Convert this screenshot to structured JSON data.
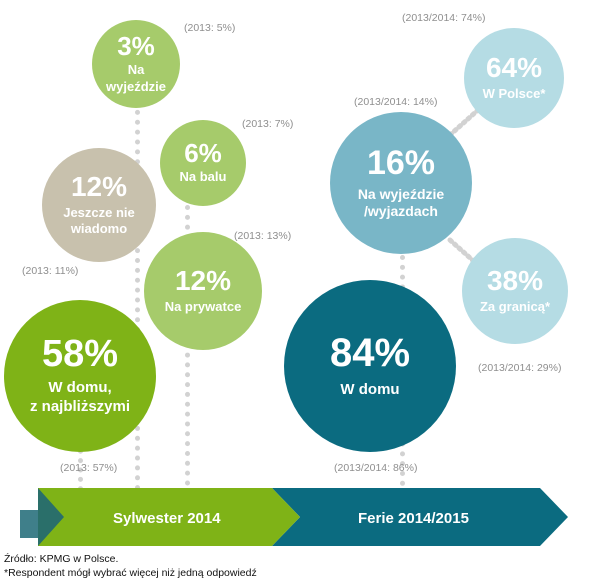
{
  "bubbles": {
    "na_wyjezdzie_2014": {
      "pct": "3%",
      "label": "Na\nwyjeździe",
      "prev": "(2013: 5%)",
      "color": "#a6cb6b"
    },
    "na_balu": {
      "pct": "6%",
      "label": "Na balu",
      "prev": "(2013: 7%)",
      "color": "#a6cb6b"
    },
    "jeszcze_nie_wiadomo": {
      "pct": "12%",
      "label": "Jeszcze nie\nwiadomo",
      "prev": "(2013: 11%)",
      "color": "#c8c1ad"
    },
    "na_prywatce": {
      "pct": "12%",
      "label": "Na prywatce",
      "prev": "(2013: 13%)",
      "color": "#a6cb6b"
    },
    "w_domu_2014": {
      "pct": "58%",
      "label": "W domu,\nz najbliższymi",
      "prev": "(2013: 57%)",
      "color": "#7fb317"
    },
    "w_polsce": {
      "pct": "64%",
      "label": "W Polsce*",
      "prev": "(2013/2014: 74%)",
      "color": "#b5dce4"
    },
    "na_wyjezdzie_ferie": {
      "pct": "16%",
      "label": "Na wyjeździe\n/wyjazdach",
      "prev": "(2013/2014: 14%)",
      "color": "#79b6c7"
    },
    "za_granica": {
      "pct": "38%",
      "label": "Za granicą*",
      "prev": "(2013/2014: 29%)",
      "color": "#b5dce4"
    },
    "w_domu_ferie": {
      "pct": "84%",
      "label": "W domu",
      "prev": "(2013/2014: 86%)",
      "color": "#0b6b80"
    }
  },
  "timeline": {
    "sylwester_label": "Sylwester 2014",
    "ferie_label": "Ferie 2014/2015",
    "sylwester_color": "#7fb317",
    "ferie_color": "#0b6b80"
  },
  "footnotes": {
    "source": "Źródło: KPMG w Polsce.",
    "respondent": "*Respondent mógł wybrać więcej niż jedną odpowiedź"
  }
}
